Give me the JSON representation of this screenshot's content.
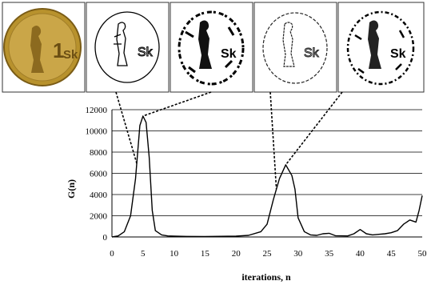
{
  "chart_data": {
    "type": "line",
    "title": "",
    "xlabel": "iterations, n",
    "ylabel": "G(n)",
    "xlim": [
      0,
      50
    ],
    "ylim": [
      0,
      12000
    ],
    "x_ticks": [
      0,
      5,
      10,
      15,
      20,
      25,
      30,
      35,
      40,
      45,
      50
    ],
    "y_ticks": [
      0,
      2000,
      4000,
      6000,
      8000,
      10000,
      12000
    ],
    "grid": "horizontal",
    "legend": "none",
    "series": [
      {
        "color": "#000000",
        "points": [
          [
            0,
            0
          ],
          [
            1,
            100
          ],
          [
            2,
            500
          ],
          [
            3,
            2000
          ],
          [
            3.8,
            5500
          ],
          [
            4.5,
            10500
          ],
          [
            5,
            11400
          ],
          [
            5.5,
            10800
          ],
          [
            6,
            7500
          ],
          [
            6.5,
            2500
          ],
          [
            7,
            600
          ],
          [
            8,
            200
          ],
          [
            9,
            100
          ],
          [
            10,
            80
          ],
          [
            12,
            50
          ],
          [
            15,
            40
          ],
          [
            20,
            80
          ],
          [
            22,
            150
          ],
          [
            24,
            500
          ],
          [
            25,
            1200
          ],
          [
            26,
            3500
          ],
          [
            27,
            5500
          ],
          [
            28,
            6800
          ],
          [
            29,
            5800
          ],
          [
            29.5,
            4500
          ],
          [
            30,
            1800
          ],
          [
            31,
            500
          ],
          [
            32,
            200
          ],
          [
            33,
            150
          ],
          [
            34,
            300
          ],
          [
            35,
            350
          ],
          [
            36,
            120
          ],
          [
            38,
            100
          ],
          [
            39,
            300
          ],
          [
            40,
            700
          ],
          [
            41,
            300
          ],
          [
            42,
            200
          ],
          [
            43,
            250
          ],
          [
            44,
            300
          ],
          [
            45,
            400
          ],
          [
            46,
            600
          ],
          [
            47,
            1200
          ],
          [
            48,
            1600
          ],
          [
            49,
            1400
          ],
          [
            49.5,
            2500
          ],
          [
            50,
            3900
          ]
        ]
      }
    ],
    "thumbnails": [
      {
        "name": "original-coin",
        "inscription": "1 Sk",
        "points_to_x": null
      },
      {
        "name": "binary-before-peak-1",
        "inscription": "Sk",
        "points_to_x": 4
      },
      {
        "name": "binary-peak-1",
        "inscription": "Sk",
        "points_to_x": 5
      },
      {
        "name": "binary-before-peak-2",
        "inscription": "Sk",
        "points_to_x": 26.5
      },
      {
        "name": "binary-peak-2",
        "inscription": "Sk",
        "points_to_x": 28
      }
    ]
  }
}
